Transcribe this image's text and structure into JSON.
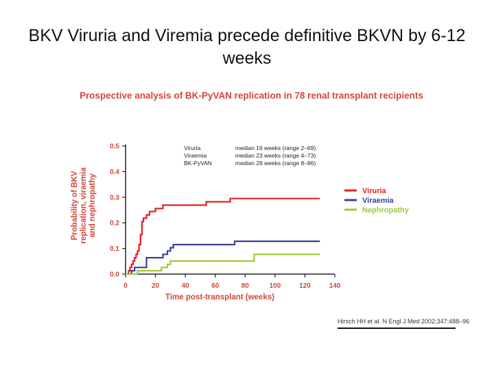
{
  "slide": {
    "title": "BKV Viruria and Viremia precede definitive BKVN by 6-12 weeks"
  },
  "figure": {
    "title": "Prospective analysis of BK-PyVAN replication in 78 renal transplant recipients",
    "citation": "Hirsch HH et al. N Engl J Med 2002;347:488–96"
  },
  "colors": {
    "viruria": "#e02020",
    "viraemia": "#3a3f9a",
    "nephropathy": "#9ec93a",
    "axis_text": "#d0473a",
    "axis": "#222222"
  },
  "chart_data": {
    "type": "line",
    "step": true,
    "xlabel": "Time post-transplant (weeks)",
    "ylabel": "Probability of BKV replication, viraemia and nephropathy",
    "ylabel_lines": [
      "Probability of BKV",
      "replication, viraemia",
      "and nephropathy"
    ],
    "xlim": [
      0,
      140
    ],
    "ylim": [
      0,
      0.5
    ],
    "xticks": [
      0,
      20,
      40,
      60,
      80,
      100,
      120,
      140
    ],
    "yticks": [
      "0.0",
      "0.1",
      "0.2",
      "0.3",
      "0.4",
      "0.5"
    ],
    "legend_position": "right",
    "annotations": [
      {
        "label": "Viruria",
        "text": "median 16 weeks (range 2–69)"
      },
      {
        "label": "Viraemia",
        "text": "median 23 weeks (range 4–73)"
      },
      {
        "label": "BK-PyVAN",
        "text": "median 28 weeks (range 8–86)"
      }
    ],
    "series": [
      {
        "name": "Viruria",
        "color": "#e02020",
        "x": [
          0,
          2,
          3,
          4,
          5,
          6,
          7,
          8,
          9,
          10,
          11,
          12,
          14,
          16,
          18,
          20,
          22,
          25,
          28,
          32,
          40,
          54,
          70,
          130
        ],
        "y": [
          0,
          0.013,
          0.026,
          0.038,
          0.051,
          0.064,
          0.077,
          0.09,
          0.115,
          0.154,
          0.205,
          0.218,
          0.231,
          0.244,
          0.244,
          0.256,
          0.256,
          0.269,
          0.269,
          0.269,
          0.269,
          0.282,
          0.295,
          0.295
        ]
      },
      {
        "name": "Viraemia",
        "color": "#3a3f9a",
        "x": [
          0,
          4,
          6,
          12,
          14,
          25,
          28,
          30,
          32,
          73,
          130
        ],
        "y": [
          0,
          0.013,
          0.026,
          0.026,
          0.064,
          0.077,
          0.09,
          0.103,
          0.115,
          0.128,
          0.128
        ]
      },
      {
        "name": "Nephropathy",
        "color": "#9ec93a",
        "x": [
          0,
          8,
          12,
          24,
          28,
          30,
          86,
          130
        ],
        "y": [
          0,
          0.013,
          0.013,
          0.026,
          0.038,
          0.051,
          0.077,
          0.077
        ]
      }
    ]
  }
}
